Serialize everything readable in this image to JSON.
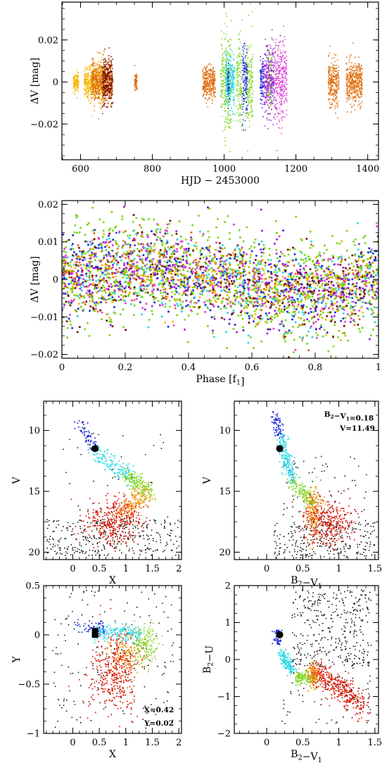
{
  "chart_data": [
    {
      "id": "light-curve",
      "type": "scatter",
      "xlabel": "HJD − 2453000",
      "ylabel": "ΔV [mag]",
      "xlim": [
        548,
        1430
      ],
      "ylim": [
        0.038,
        -0.037
      ],
      "xticks": [
        600,
        800,
        1000,
        1200,
        1400
      ],
      "yticks": [
        -0.02,
        0,
        0.02
      ],
      "ytick_labels": [
        "−0.02",
        "0",
        "0.02"
      ],
      "series": [
        {
          "color": "#f5b800",
          "segments": [
            [
              580,
              595,
              0.005
            ],
            [
              610,
              645,
              0.01
            ],
            [
              648,
              668,
              0.013
            ]
          ]
        },
        {
          "color": "#e07010",
          "segments": [
            [
              630,
              690,
              0.012
            ],
            [
              750,
              758,
              0.006
            ],
            [
              940,
              975,
              0.01
            ],
            [
              1290,
              1320,
              0.014
            ],
            [
              1340,
              1385,
              0.013
            ]
          ]
        },
        {
          "color": "#7a1500",
          "segments": [
            [
              660,
              690,
              0.015
            ]
          ]
        },
        {
          "color": "#7fd61e",
          "segments": [
            [
              990,
              1020,
              0.03
            ],
            [
              1035,
              1050,
              0.028
            ],
            [
              1060,
              1080,
              0.027
            ],
            [
              1120,
              1135,
              0.02
            ]
          ]
        },
        {
          "color": "#28d8e0",
          "segments": [
            [
              1003,
              1030,
              0.016
            ]
          ]
        },
        {
          "color": "#2030d8",
          "segments": [
            [
              1010,
              1015,
              0.012
            ],
            [
              1050,
              1065,
              0.026
            ],
            [
              1100,
              1110,
              0.014
            ]
          ]
        },
        {
          "color": "#a020e0",
          "segments": [
            [
              1110,
              1140,
              0.022
            ]
          ]
        },
        {
          "color": "#e040d8",
          "segments": [
            [
              1140,
              1175,
              0.025
            ]
          ]
        }
      ]
    },
    {
      "id": "phase-plot",
      "type": "scatter",
      "xlabel": "Phase [f1]",
      "ylabel": "ΔV [mag]",
      "xlim": [
        0,
        1
      ],
      "ylim": [
        0.021,
        -0.021
      ],
      "xticks": [
        0,
        0.2,
        0.4,
        0.6,
        0.8,
        1
      ],
      "xtick_labels": [
        "0",
        "0.2",
        "0.4",
        "0.6",
        "0.8",
        "1"
      ],
      "yticks": [
        -0.02,
        -0.01,
        0,
        0.01,
        0.02
      ],
      "ytick_labels": [
        "−0.02",
        "−0.01",
        "0",
        "0.01",
        "0.02"
      ],
      "colors": [
        "#7fd61e",
        "#7fd61e",
        "#7fd61e",
        "#f5b800",
        "#e07010",
        "#2030d8",
        "#a020e0",
        "#e040d8",
        "#28d8e0",
        "#7a1500"
      ],
      "amplitude": 0.003
    },
    {
      "id": "cmd-v-x",
      "type": "scatter",
      "xlabel": "X",
      "ylabel": "V",
      "xlim": [
        -0.55,
        2.05
      ],
      "ylim": [
        7.6,
        20.6
      ],
      "xticks": [
        0,
        0.5,
        1,
        1.5,
        2
      ],
      "xtick_labels": [
        "0",
        "0.5",
        "1",
        "1.5",
        "2"
      ],
      "yticks": [
        10,
        15,
        20
      ],
      "ytick_labels": [
        "10",
        "15",
        "20"
      ],
      "highlight": {
        "x": 0.42,
        "y": 11.49
      }
    },
    {
      "id": "cmd-v-bv",
      "type": "scatter",
      "xlabel": "B2−V1",
      "ylabel": "V",
      "xlim": [
        -0.45,
        1.55
      ],
      "ylim": [
        7.6,
        20.6
      ],
      "xticks": [
        0,
        0.5,
        1,
        1.5
      ],
      "xtick_labels": [
        "0",
        "0.5",
        "1",
        "1.5"
      ],
      "yticks": [
        10,
        15,
        20
      ],
      "ytick_labels": [
        "10",
        "15",
        "20"
      ],
      "highlight": {
        "x": 0.18,
        "y": 11.49
      },
      "annotations": [
        "B2−V1=0.18",
        "V=11.49"
      ]
    },
    {
      "id": "color-color-xy",
      "type": "scatter",
      "xlabel": "X",
      "ylabel": "Y",
      "xlim": [
        -0.55,
        2.05
      ],
      "ylim": [
        0.5,
        -1.0
      ],
      "xticks": [
        0,
        0.5,
        1,
        1.5,
        2
      ],
      "xtick_labels": [
        "0",
        "0.5",
        "1",
        "1.5",
        "2"
      ],
      "yticks": [
        0.5,
        0,
        -0.5,
        -1
      ],
      "ytick_labels": [
        "0.5",
        "0",
        "−0.5",
        "−1"
      ],
      "highlight": {
        "x": 0.42,
        "y": 0.02
      },
      "annotations": [
        "X=0.42",
        "Y=0.02"
      ]
    },
    {
      "id": "color-color-bu",
      "type": "scatter",
      "xlabel": "B2−V1",
      "ylabel": "B2−U",
      "xlim": [
        -0.45,
        1.55
      ],
      "ylim": [
        2.0,
        -2.0
      ],
      "xticks": [
        0,
        0.5,
        1,
        1.5
      ],
      "xtick_labels": [
        "0",
        "0.5",
        "1",
        "1.5"
      ],
      "yticks": [
        2,
        1,
        0,
        -1,
        -2
      ],
      "ytick_labels": [
        "2",
        "1",
        "0",
        "−1",
        "−2"
      ],
      "highlight": {
        "x": 0.18,
        "y": 0.67
      }
    }
  ]
}
